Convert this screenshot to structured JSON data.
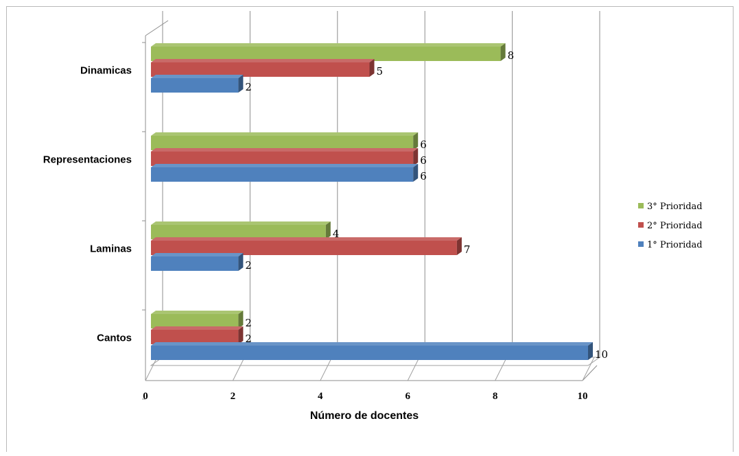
{
  "chart_data": {
    "type": "bar",
    "orientation": "horizontal",
    "style": "3d-clustered",
    "categories": [
      "Cantos",
      "Laminas",
      "Representaciones",
      "Dinamicas"
    ],
    "series": [
      {
        "name": "1° Prioridad",
        "color": "#4f81bd",
        "values": [
          10,
          2,
          6,
          2
        ]
      },
      {
        "name": "2° Prioridad",
        "color": "#c0504d",
        "values": [
          2,
          7,
          6,
          5
        ]
      },
      {
        "name": "3° Prioridad",
        "color": "#9bbb59",
        "values": [
          2,
          4,
          6,
          8
        ]
      }
    ],
    "xlabel": "Número de docentes",
    "ylabel": "",
    "xlim": [
      0,
      10
    ],
    "xticks": [
      "0",
      "2",
      "4",
      "6",
      "8",
      "10"
    ],
    "grid": true,
    "legend_position": "right"
  }
}
